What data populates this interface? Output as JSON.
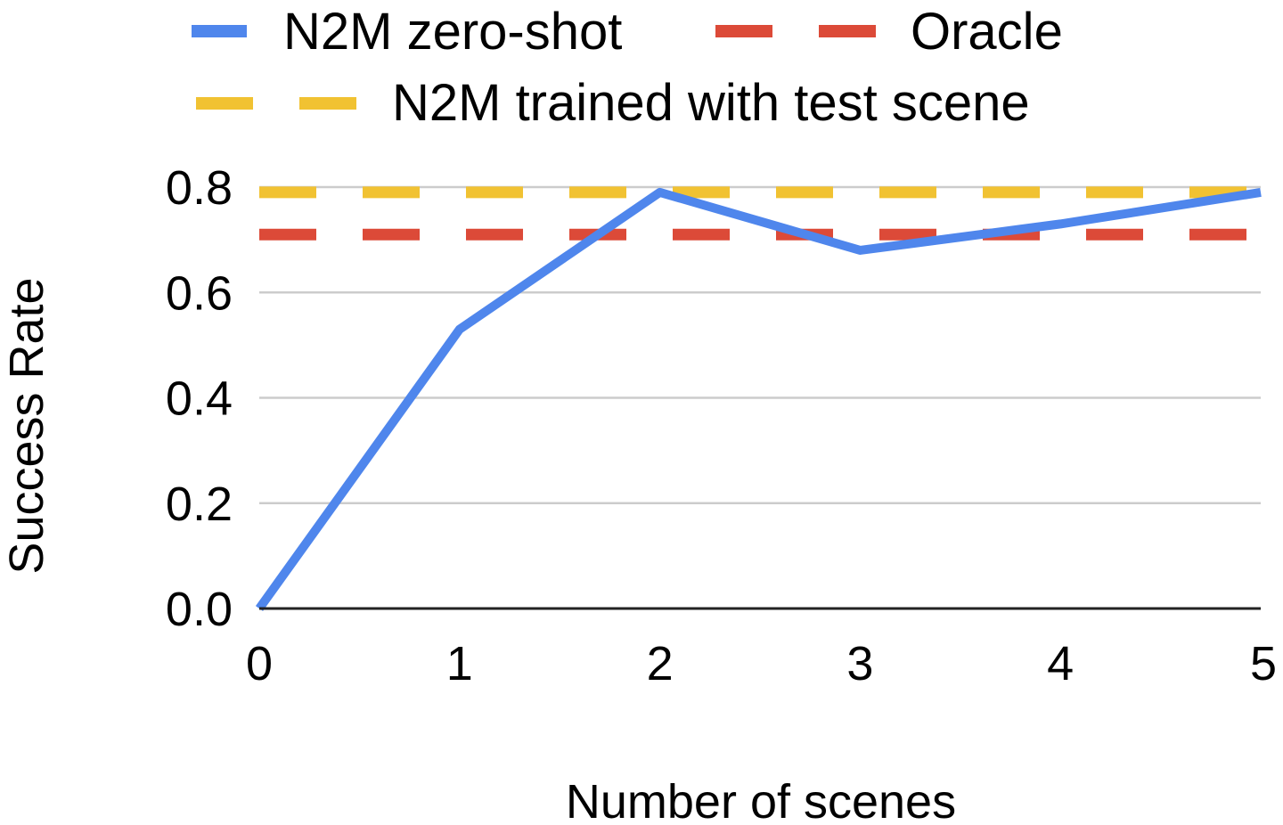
{
  "chart_data": {
    "type": "line",
    "xlabel": "Number of scenes",
    "ylabel": "Success Rate",
    "xlim": [
      0,
      5
    ],
    "ylim": [
      0,
      0.8
    ],
    "x_ticks": [
      "0",
      "1",
      "2",
      "3",
      "4",
      "5"
    ],
    "y_ticks": [
      "0.0",
      "0.2",
      "0.4",
      "0.6",
      "0.8"
    ],
    "grid": true,
    "legend_position": "top",
    "x": [
      0,
      1,
      2,
      3,
      4,
      5
    ],
    "series": [
      {
        "name": "N2M zero-shot",
        "style": "solid",
        "color": "#4f86ec",
        "values": [
          0.0,
          0.53,
          0.79,
          0.68,
          0.73,
          0.79
        ]
      },
      {
        "name": "Oracle",
        "style": "dashed",
        "color": "#dc4a38",
        "values": [
          0.71,
          0.71,
          0.71,
          0.71,
          0.71,
          0.71
        ]
      },
      {
        "name": "N2M trained with test scene",
        "style": "dashed",
        "color": "#f1c232",
        "values": [
          0.79,
          0.79,
          0.79,
          0.79,
          0.79,
          0.79
        ]
      }
    ],
    "gridline_color": "#cccccc",
    "axis_color": "#222222"
  }
}
